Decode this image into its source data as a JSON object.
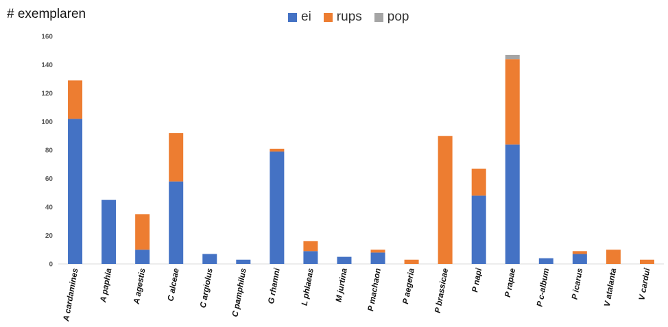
{
  "chart_data": {
    "type": "bar",
    "stacked": true,
    "ylabel": "# exemplaren",
    "ylim": [
      0,
      160
    ],
    "yticks": [
      0,
      20,
      40,
      60,
      80,
      100,
      120,
      140,
      160
    ],
    "grid": false,
    "legend_position": "top-center",
    "categories": [
      "A cardamines",
      "A paphia",
      "A agestis",
      "C alceae",
      "C argiolus",
      "C pamphilus",
      "G rhamni",
      "L phlaeas",
      "M jurtina",
      "P machaon",
      "P aegeria",
      "P brassicae",
      "P napi",
      "P rapae",
      "P c-album",
      "P icarus",
      "V atalanta",
      "V cardui"
    ],
    "series": [
      {
        "name": "ei",
        "color": "#4472c4",
        "values": [
          102,
          45,
          10,
          58,
          7,
          3,
          79,
          9,
          5,
          8,
          0,
          0,
          48,
          84,
          4,
          7,
          0,
          0
        ]
      },
      {
        "name": "rups",
        "color": "#ed7d31",
        "values": [
          27,
          0,
          25,
          34,
          0,
          0,
          2,
          7,
          0,
          2,
          3,
          90,
          19,
          60,
          0,
          2,
          10,
          3
        ]
      },
      {
        "name": "pop",
        "color": "#a5a5a5",
        "values": [
          0,
          0,
          0,
          0,
          0,
          0,
          0,
          0,
          0,
          0,
          0,
          0,
          0,
          3,
          0,
          0,
          0,
          0
        ]
      }
    ]
  }
}
